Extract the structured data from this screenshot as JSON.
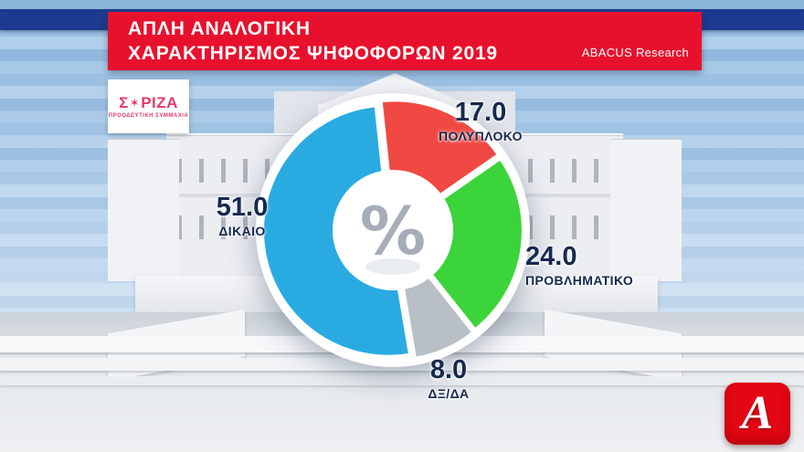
{
  "header": {
    "bar_color": "#1c3a8e",
    "banner_color": "#e8112d",
    "title_line1": "ΑΠΛΗ ΑΝΑΛΟΓΙΚΗ",
    "title_line2": "ΧΑΡΑΚΤΗΡΙΣΜΟΣ ΨΗΦΟΦΟΡΩΝ 2019",
    "source": "ABACUS Research"
  },
  "party_logo": {
    "text_start": "Σ",
    "star": "✶",
    "text_end": "ΡΙΖΑ",
    "subtitle": "ΠΡΟΟΔΕΥΤΙΚΗ ΣΥΜΜΑΧΙΑ",
    "color": "#e23a68"
  },
  "channel_logo": {
    "letter": "A",
    "background": "#e30613"
  },
  "chart_data": {
    "type": "pie",
    "variant": "donut",
    "title": "ΑΠΛΗ ΑΝΑΛΟΓΙΚΗ — ΧΑΡΑΚΤΗΡΙΣΜΟΣ ΨΗΦΟΦΟΡΩΝ 2019",
    "source": "ABACUS Research",
    "unit": "%",
    "center_label": "%",
    "start_angle_deg": -6,
    "clockwise": true,
    "legend_position": "around",
    "segments": [
      {
        "label": "ΠΟΛΥΠΛΟΚΟ",
        "value": 17.0,
        "color": "#f04843"
      },
      {
        "label": "ΠΡΟΒΛΗΜΑΤΙΚΟ",
        "value": 24.0,
        "color": "#3bd43b"
      },
      {
        "label": "ΔΞ/ΔΑ",
        "value": 8.0,
        "color": "#b9bfc7"
      },
      {
        "label": "ΔΙΚΑΙΟ",
        "value": 51.0,
        "color": "#29abe2"
      }
    ],
    "value_text_color": "#16294f"
  }
}
